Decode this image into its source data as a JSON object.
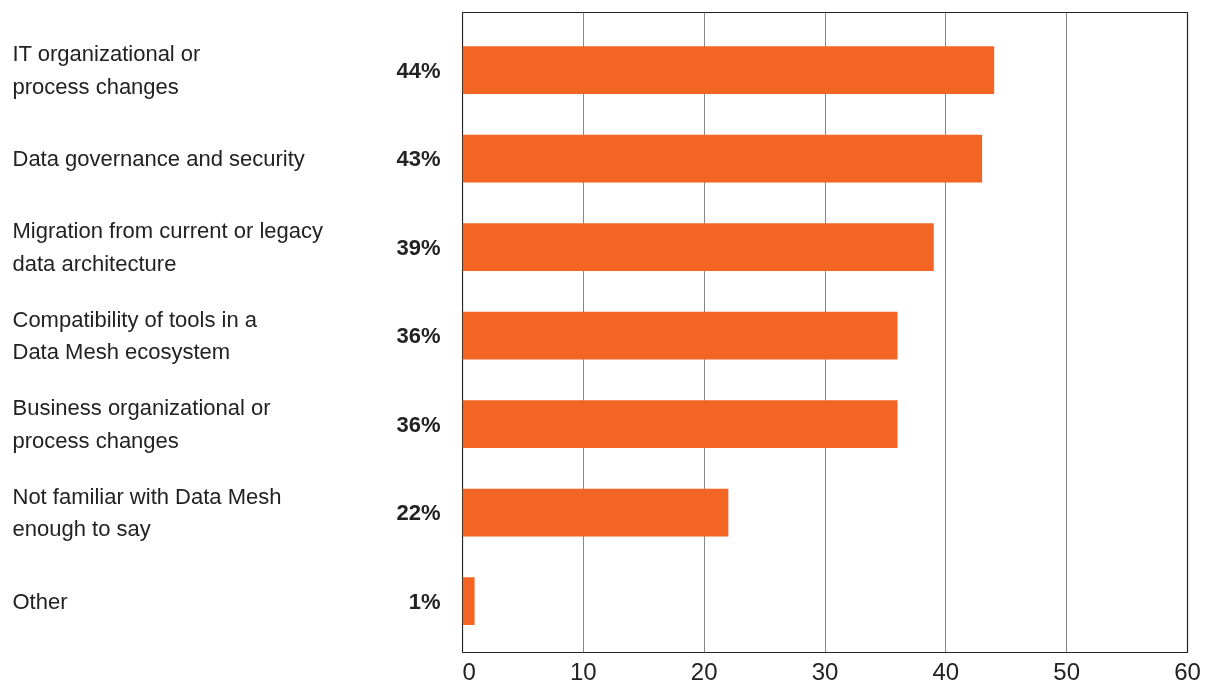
{
  "chart_data": {
    "type": "bar",
    "orientation": "horizontal",
    "categories": [
      "IT organizational or\nprocess changes",
      "Data governance and security",
      "Migration from current or legacy\ndata architecture",
      "Compatibility of tools in a\nData Mesh ecosystem",
      "Business organizational or\nprocess changes",
      "Not familiar with Data Mesh\nenough to say",
      "Other"
    ],
    "values": [
      44,
      43,
      39,
      36,
      36,
      22,
      1
    ],
    "value_labels": [
      "44%",
      "43%",
      "39%",
      "36%",
      "36%",
      "22%",
      "1%"
    ],
    "color": "#f26522",
    "xlim": [
      0,
      60
    ],
    "xticks": [
      0,
      10,
      20,
      30,
      40,
      50,
      60
    ],
    "grid": "x"
  }
}
